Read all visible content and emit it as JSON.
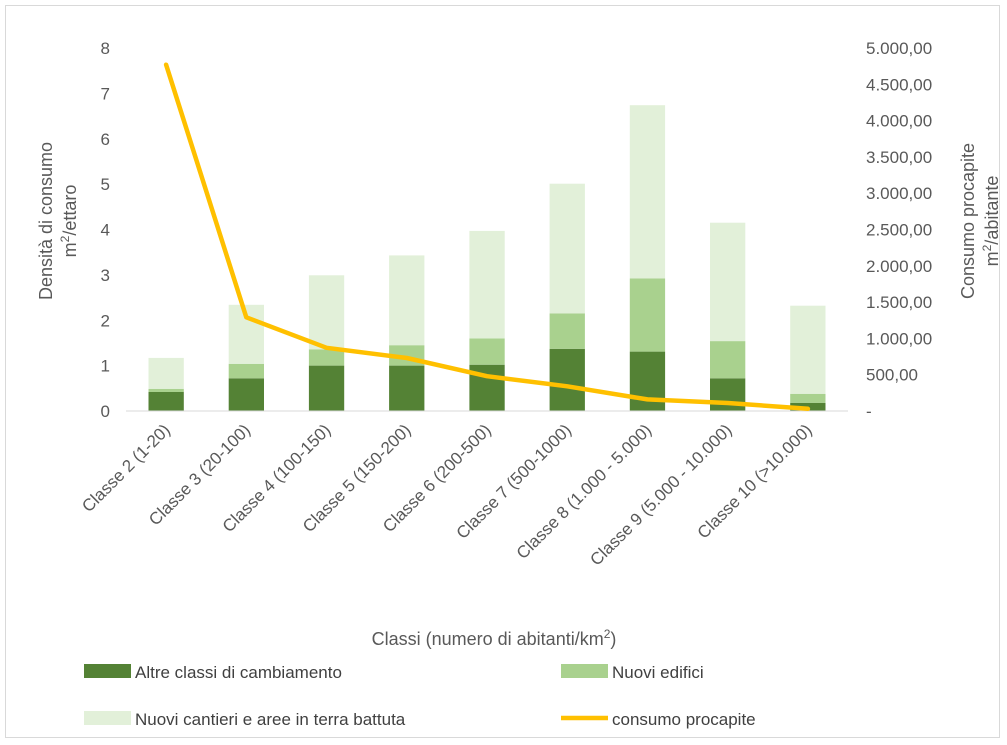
{
  "chart_data": {
    "type": "bar",
    "stacked": true,
    "categories": [
      "Classe 2 (1-20)",
      "Classe 3 (20-100)",
      "Classe 4 (100-150)",
      "Classe 5 (150-200)",
      "Classe 6 (200-500)",
      "Classe 7 (500-1000)",
      "Classe 8 (1.000 - 5.000)",
      "Classe 9 (5.000 - 10.000)",
      "Classe 10 (>10.000)"
    ],
    "series": [
      {
        "name": "Altre classi di cambiamento",
        "type": "bar",
        "axis": "left",
        "color": "#548235",
        "values": [
          0.42,
          0.72,
          1.0,
          1.0,
          1.02,
          1.37,
          1.31,
          0.72,
          0.18
        ]
      },
      {
        "name": "Nuovi edifici",
        "type": "bar",
        "axis": "left",
        "color": "#a9d18e",
        "values": [
          0.07,
          0.32,
          0.36,
          0.45,
          0.58,
          0.78,
          1.61,
          0.82,
          0.2
        ]
      },
      {
        "name": "Nuovi cantieri e aree in terra battuta",
        "type": "bar",
        "axis": "left",
        "color": "#e2f0d9",
        "values": [
          0.68,
          1.3,
          1.63,
          1.98,
          2.37,
          2.86,
          3.82,
          2.61,
          1.94
        ]
      },
      {
        "name": "consumo procapite",
        "type": "line",
        "axis": "right",
        "color": "#ffc000",
        "values": [
          4770,
          1290,
          870,
          730,
          480,
          340,
          160,
          110,
          30
        ]
      }
    ],
    "xlabel": "Classi (numero di abitanti/km",
    "xlabel_sup": "2",
    "xlabel_end": ")",
    "ylabel_line1": "Densità di consumo",
    "ylabel_line2": "m",
    "ylabel_line2_sup": "2",
    "ylabel_line2_end": "/ettaro",
    "y2label_line1": "Consumo procapite",
    "y2label_line2": "m",
    "y2label_line2_sup": "2",
    "y2label_line2_end": "/abitante",
    "ylim": [
      0,
      8
    ],
    "yticks": [
      "0",
      "1",
      "2",
      "3",
      "4",
      "5",
      "6",
      "7",
      "8"
    ],
    "y2lim": [
      0,
      5000
    ],
    "y2ticks": [
      "-",
      "500,00",
      "1.000,00",
      "1.500,00",
      "2.000,00",
      "2.500,00",
      "3.000,00",
      "3.500,00",
      "4.000,00",
      "4.500,00",
      "5.000,00"
    ],
    "grid": false,
    "legend": "bottom"
  }
}
